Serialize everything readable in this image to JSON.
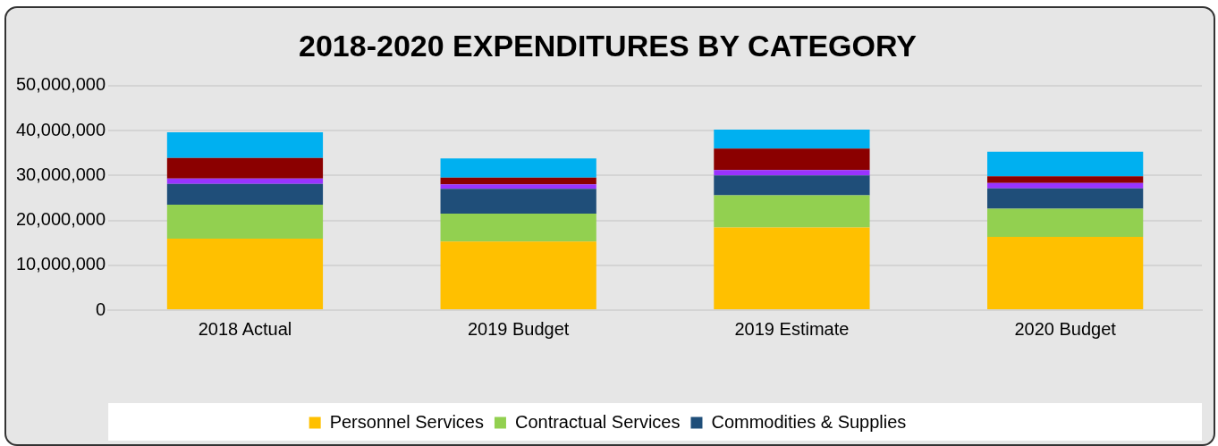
{
  "chart_data": {
    "type": "bar",
    "title": "2018-2020 EXPENDITURES BY CATEGORY",
    "stacked": true,
    "categories": [
      "2018 Actual",
      "2019 Budget",
      "2019 Estimate",
      "2020 Budget"
    ],
    "series": [
      {
        "name": "Personnel Services",
        "color": "#ffc000",
        "values": [
          15900000,
          15300000,
          18400000,
          16300000
        ]
      },
      {
        "name": "Contractual Services",
        "color": "#92d050",
        "values": [
          7600000,
          6200000,
          7200000,
          6300000
        ]
      },
      {
        "name": "Commodities & Supplies",
        "color": "#1f4e79",
        "values": [
          4600000,
          5500000,
          4400000,
          4500000
        ]
      },
      {
        "color": "#9933ff",
        "values": [
          1200000,
          1000000,
          1200000,
          1200000
        ]
      },
      {
        "color": "#8b0000",
        "values": [
          4600000,
          1500000,
          4800000,
          1500000
        ]
      },
      {
        "color": "#00b0f0",
        "values": [
          5700000,
          4300000,
          4200000,
          5500000
        ]
      }
    ],
    "ylim": [
      0,
      50000000
    ],
    "yticks": [
      {
        "value": 0,
        "label": "0"
      },
      {
        "value": 10000000,
        "label": "10,000,000"
      },
      {
        "value": 20000000,
        "label": "20,000,000"
      },
      {
        "value": 30000000,
        "label": "30,000,000"
      },
      {
        "value": 40000000,
        "label": "40,000,000"
      },
      {
        "value": 50000000,
        "label": "50,000,000"
      }
    ],
    "grid": "y",
    "legend": "bottom"
  }
}
